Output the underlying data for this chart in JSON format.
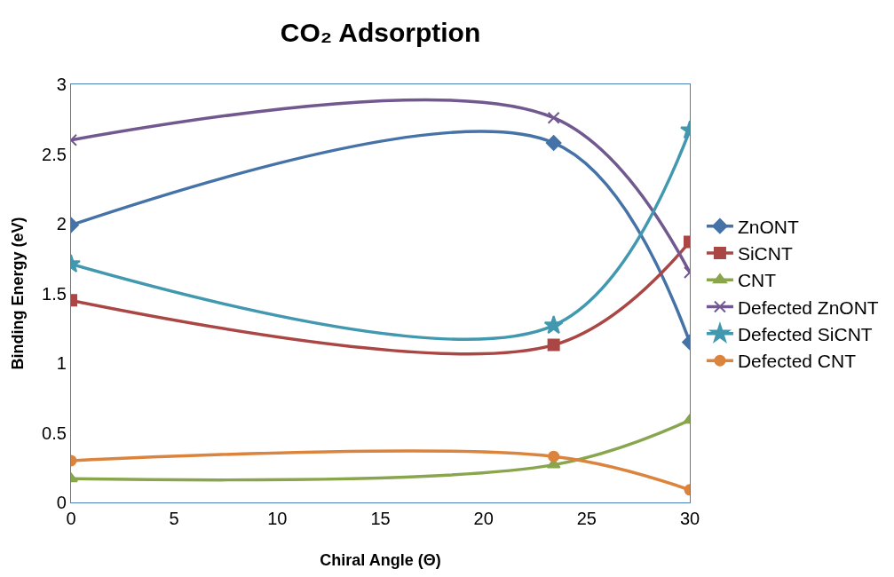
{
  "chart_data": {
    "type": "line",
    "title": "CO₂ Adsorption",
    "xlabel": "Chiral Angle (Θ)",
    "ylabel": "Binding Energy (eV)",
    "x": [
      0,
      23.4,
      30
    ],
    "series": [
      {
        "name": "ZnONT",
        "color": "#4572a7",
        "marker": "diamond",
        "values": [
          1.99,
          2.58,
          1.15
        ]
      },
      {
        "name": "SiCNT",
        "color": "#aa4643",
        "marker": "square",
        "values": [
          1.45,
          1.13,
          1.87
        ]
      },
      {
        "name": "CNT",
        "color": "#89a54e",
        "marker": "triangle",
        "values": [
          0.17,
          0.27,
          0.59
        ]
      },
      {
        "name": "Defected ZnONT",
        "color": "#71588f",
        "marker": "cross",
        "values": [
          2.6,
          2.76,
          1.65
        ]
      },
      {
        "name": "Defected SiCNT",
        "color": "#4198af",
        "marker": "star",
        "values": [
          1.71,
          1.27,
          2.67
        ]
      },
      {
        "name": "Defected CNT",
        "color": "#db843d",
        "marker": "circle",
        "values": [
          0.3,
          0.33,
          0.09
        ]
      }
    ],
    "xlim": [
      0,
      30
    ],
    "xticks": [
      0,
      5,
      10,
      15,
      20,
      25,
      30
    ],
    "ylim": [
      0,
      3
    ],
    "yticks": [
      0,
      0.5,
      1,
      1.5,
      2,
      2.5,
      3
    ],
    "legend": "right",
    "line_style": "solid"
  }
}
